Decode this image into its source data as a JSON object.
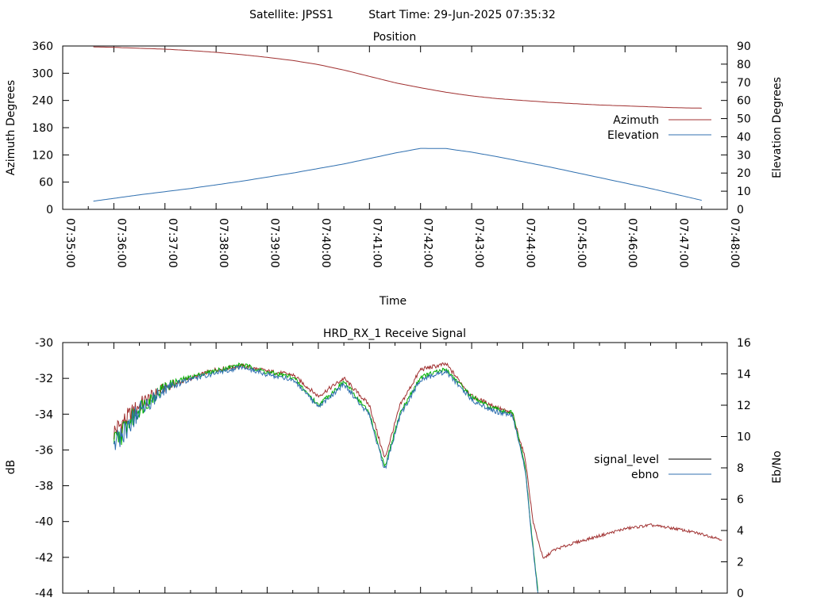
{
  "header": {
    "satellite_label": "Satellite: JPSS1",
    "start_time_label": "Start Time: 29-Jun-2025 07:35:32"
  },
  "colors": {
    "azimuth": "#a03030",
    "elevation": "#3070b0",
    "signal_level": "#000000",
    "signal_level_drawn": "#a03030",
    "ebno": "#3070b0",
    "ebno_drawn": "#00b000"
  },
  "chart_data": [
    {
      "type": "line",
      "title": "Position",
      "xlabel": "Time",
      "ylabel": "Azimuth Degrees",
      "y2label": "Elevation Degrees",
      "xticks": [
        "07:35:00",
        "07:36:00",
        "07:37:00",
        "07:38:00",
        "07:39:00",
        "07:40:00",
        "07:41:00",
        "07:42:00",
        "07:43:00",
        "07:44:00",
        "07:45:00",
        "07:46:00",
        "07:47:00",
        "07:48:00"
      ],
      "yticks": [
        0,
        60,
        120,
        180,
        240,
        300,
        360
      ],
      "y2ticks": [
        0,
        10,
        20,
        30,
        40,
        50,
        60,
        70,
        80,
        90
      ],
      "ylim": [
        0,
        360
      ],
      "y2lim": [
        0,
        90
      ],
      "legend_position": "right",
      "series": [
        {
          "name": "Azimuth",
          "axis": "left",
          "x": [
            0.6,
            1,
            1.5,
            2,
            2.5,
            3,
            3.5,
            4,
            4.5,
            5,
            5.5,
            6,
            6.5,
            7,
            7.5,
            8,
            8.5,
            9,
            9.5,
            10,
            10.5,
            11,
            11.5,
            12,
            12.5
          ],
          "values": [
            358,
            357,
            355,
            353,
            350,
            346,
            341,
            335,
            328,
            319,
            307,
            293,
            279,
            268,
            258,
            250,
            244,
            240,
            236,
            233,
            230,
            228,
            226,
            224,
            223
          ]
        },
        {
          "name": "Elevation",
          "axis": "right",
          "x": [
            0.6,
            1.5,
            2.5,
            3.5,
            4.5,
            5.5,
            6,
            6.5,
            7,
            7.5,
            8,
            8.5,
            9.5,
            10.5,
            11.5,
            12.5
          ],
          "values": [
            4.5,
            8,
            11.5,
            15.5,
            20,
            25,
            28,
            31,
            33.6,
            33.5,
            31.5,
            29,
            23.5,
            17.5,
            11.5,
            5
          ]
        }
      ]
    },
    {
      "type": "line",
      "title": "HRD_RX_1 Receive Signal",
      "ylabel": "dB",
      "y2label": "Eb/No",
      "yticks": [
        -44,
        -42,
        -40,
        -38,
        -36,
        -34,
        -32,
        -30
      ],
      "y2ticks": [
        0,
        2,
        4,
        6,
        8,
        10,
        12,
        14,
        16
      ],
      "ylim": [
        -44,
        -30
      ],
      "y2lim": [
        0,
        16
      ],
      "legend_position": "right",
      "series": [
        {
          "name": "signal_level",
          "axis": "left",
          "x": [
            1.0,
            1.5,
            2.0,
            2.5,
            3.0,
            3.5,
            4.0,
            4.5,
            5.0,
            5.5,
            6.0,
            6.3,
            6.6,
            7.0,
            7.5,
            8.0,
            8.4,
            8.8,
            9.05,
            9.2,
            9.4,
            9.6,
            10.0,
            10.5,
            11.0,
            11.5,
            12.0,
            12.5,
            12.9
          ],
          "values": [
            -35.0,
            -33.5,
            -32.5,
            -32.0,
            -31.5,
            -31.3,
            -31.6,
            -31.8,
            -33.0,
            -32.0,
            -33.5,
            -36.5,
            -33.5,
            -31.5,
            -31.2,
            -33.0,
            -33.5,
            -34.0,
            -36.5,
            -40.0,
            -42.1,
            -41.6,
            -41.2,
            -40.8,
            -40.4,
            -40.2,
            -40.4,
            -40.7,
            -41.0
          ]
        },
        {
          "name": "ebno",
          "axis": "right",
          "x": [
            1.0,
            1.5,
            2.0,
            2.5,
            3.0,
            3.5,
            4.0,
            4.5,
            5.0,
            5.5,
            6.0,
            6.3,
            6.6,
            7.0,
            7.5,
            8.0,
            8.4,
            8.8,
            9.05,
            9.15,
            9.3
          ],
          "values": [
            9.5,
            11.8,
            13.2,
            13.8,
            14.2,
            14.6,
            14.1,
            13.8,
            12.0,
            13.5,
            11.5,
            8.0,
            11.5,
            13.8,
            14.3,
            12.5,
            11.8,
            11.5,
            8.0,
            4.5,
            0.0
          ]
        }
      ]
    }
  ]
}
